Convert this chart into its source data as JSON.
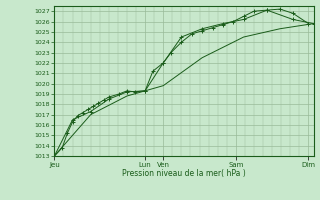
{
  "background_color": "#c8e8cc",
  "grid_color": "#99bb99",
  "line_color": "#1a5c1a",
  "marker_color": "#1a5c1a",
  "xlabel": "Pression niveau de la mer( hPa )",
  "ylim": [
    1013,
    1027.5
  ],
  "yticks": [
    1013,
    1014,
    1015,
    1016,
    1017,
    1018,
    1019,
    1020,
    1021,
    1022,
    1023,
    1024,
    1025,
    1026,
    1027
  ],
  "xtick_labels": [
    "Jeu",
    "Lun",
    "Ven",
    "Sam",
    "Dim"
  ],
  "xtick_positions": [
    0,
    35,
    42,
    70,
    98
  ],
  "xlim": [
    0,
    100
  ],
  "series1_x": [
    0,
    3,
    5,
    7,
    9,
    11,
    13,
    15,
    17,
    19,
    21,
    25,
    28,
    31,
    35,
    38,
    42,
    45,
    49,
    53,
    57,
    61,
    65,
    69,
    73,
    77,
    82,
    87,
    92,
    98
  ],
  "series1_y": [
    1013.0,
    1013.8,
    1015.2,
    1016.3,
    1016.9,
    1017.2,
    1017.5,
    1017.8,
    1018.1,
    1018.4,
    1018.7,
    1019.0,
    1019.3,
    1019.2,
    1019.3,
    1021.2,
    1022.0,
    1023.0,
    1024.0,
    1024.8,
    1025.1,
    1025.4,
    1025.7,
    1026.0,
    1026.5,
    1027.0,
    1027.1,
    1027.2,
    1026.8,
    1025.8
  ],
  "series2_x": [
    0,
    7,
    14,
    21,
    28,
    35,
    42,
    49,
    57,
    65,
    73,
    82,
    92,
    100
  ],
  "series2_y": [
    1013.0,
    1016.5,
    1017.3,
    1018.5,
    1019.2,
    1019.3,
    1022.0,
    1024.5,
    1025.3,
    1025.8,
    1026.2,
    1027.1,
    1026.2,
    1025.8
  ],
  "series3_x": [
    0,
    14,
    28,
    42,
    57,
    73,
    87,
    100
  ],
  "series3_y": [
    1013.0,
    1017.0,
    1018.8,
    1019.8,
    1022.5,
    1024.5,
    1025.3,
    1025.8
  ]
}
